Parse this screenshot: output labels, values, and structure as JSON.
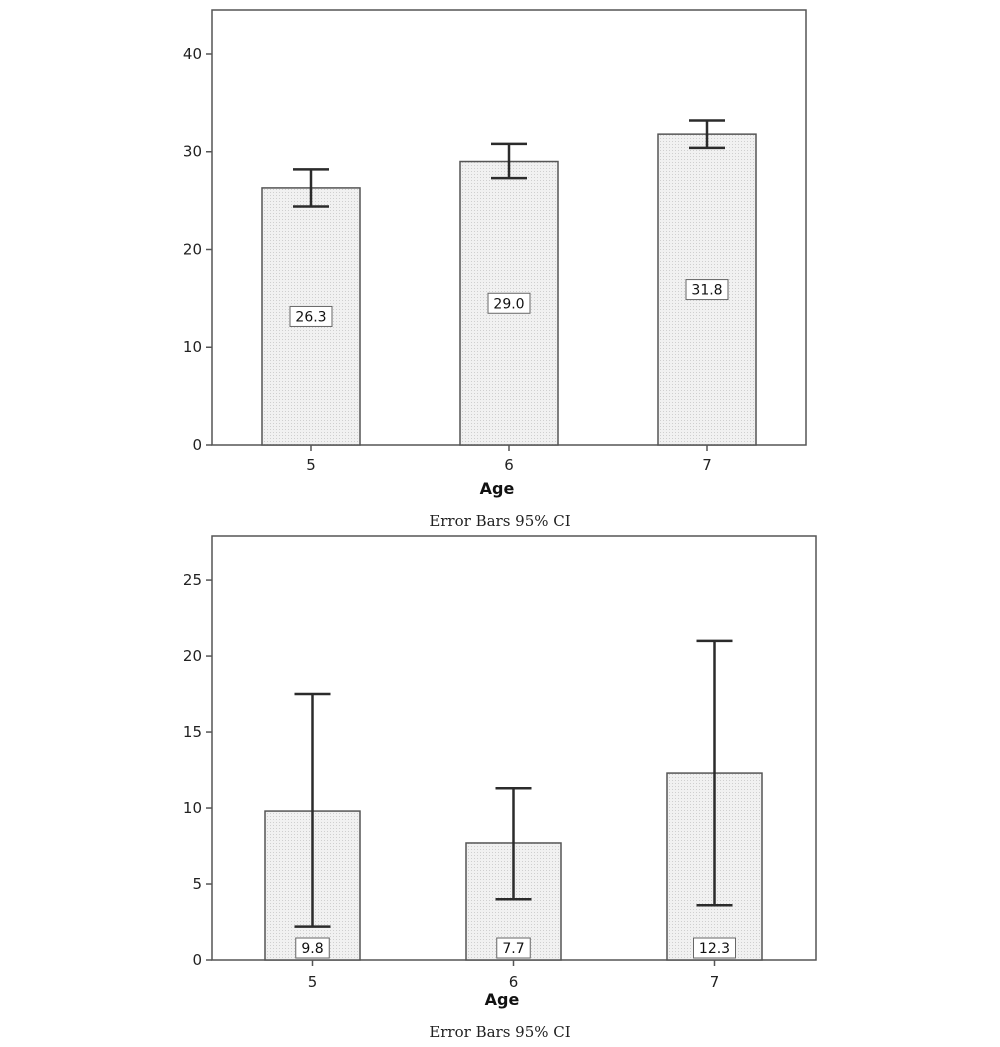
{
  "chart_data": [
    {
      "type": "bar",
      "categories": [
        "5",
        "6",
        "7"
      ],
      "values": [
        26.3,
        29.0,
        31.8
      ],
      "value_labels": [
        "26.3",
        "29.0",
        "31.8"
      ],
      "error_bars": [
        [
          24.4,
          28.2
        ],
        [
          27.3,
          30.8
        ],
        [
          30.4,
          33.2
        ]
      ],
      "error_bar_type": "95% CI",
      "xlabel": "Age",
      "ylabel": "",
      "ylim": [
        0,
        44.5
      ],
      "yticks": [
        0,
        10,
        20,
        30,
        40
      ],
      "caption": "Error Bars 95% CI",
      "grid": false,
      "colors": {
        "bar_fill": "#efefef",
        "bar_stroke": "#555555",
        "error_bar": "#2b2b2b",
        "frame": "#555555"
      }
    },
    {
      "type": "bar",
      "categories": [
        "5",
        "6",
        "7"
      ],
      "values": [
        9.8,
        7.7,
        12.3
      ],
      "value_labels": [
        "9.8",
        "7.7",
        "12.3"
      ],
      "error_bars": [
        [
          2.2,
          17.5
        ],
        [
          4.0,
          11.3
        ],
        [
          3.6,
          21.0
        ]
      ],
      "error_bar_type": "95% CI",
      "xlabel": "Age",
      "ylabel": "",
      "ylim": [
        0,
        27.9
      ],
      "yticks": [
        0,
        5,
        10,
        15,
        20,
        25
      ],
      "caption": "Error Bars 95% CI",
      "grid": false,
      "colors": {
        "bar_fill": "#efefef",
        "bar_stroke": "#555555",
        "error_bar": "#2b2b2b",
        "frame": "#555555"
      }
    }
  ]
}
